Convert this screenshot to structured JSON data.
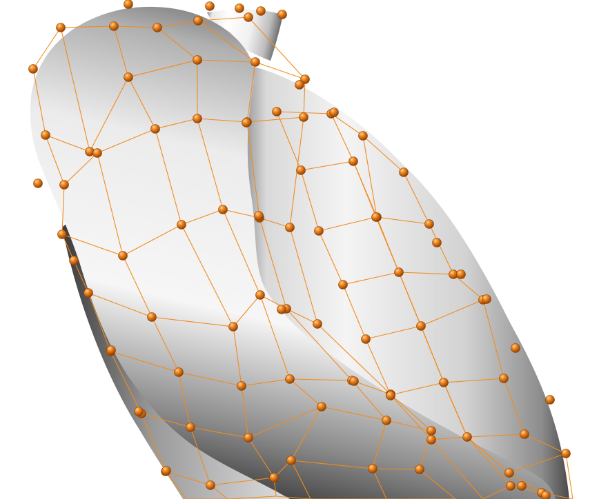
{
  "scene": {
    "subject": "subdivision-surface-tube",
    "surface_color": "#e6e6e6",
    "surface_highlight": "#ffffff",
    "surface_shadow": "#3c3c3c",
    "mesh_color": "#f28a1e",
    "control_point_color": "#e87a14",
    "control_point_shadow": "#8a3a00",
    "background": "#ffffff"
  }
}
